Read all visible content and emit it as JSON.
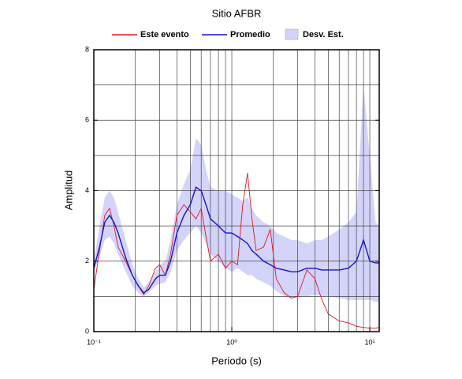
{
  "chart_data": {
    "type": "line",
    "title": "Sitio AFBR",
    "x_label": "Periodo (s)",
    "y_label": "Amplitud",
    "log_x": true,
    "grid": true,
    "legend": "top",
    "xlim": [
      0.1,
      11.7
    ],
    "ylim": [
      0,
      8
    ],
    "xticks": [
      {
        "value": 0.1,
        "label": "10⁻¹"
      },
      {
        "value": 1,
        "label": "10⁰"
      },
      {
        "value": 10,
        "label": "10¹"
      }
    ],
    "xgrid": [
      0.2,
      0.3,
      0.4,
      0.5,
      0.6,
      0.7,
      0.8,
      0.9,
      1,
      2,
      3,
      4,
      5,
      6,
      7,
      8,
      9,
      10
    ],
    "yticks": [
      0,
      2,
      4,
      6,
      8
    ],
    "ygrid": [
      1,
      2,
      3,
      4,
      5,
      6,
      7
    ],
    "x": [
      0.1,
      0.11,
      0.12,
      0.13,
      0.14,
      0.15,
      0.17,
      0.19,
      0.21,
      0.23,
      0.25,
      0.28,
      0.3,
      0.33,
      0.36,
      0.4,
      0.45,
      0.5,
      0.55,
      0.6,
      0.65,
      0.7,
      0.8,
      0.9,
      1.0,
      1.1,
      1.2,
      1.3,
      1.4,
      1.5,
      1.7,
      1.9,
      2.1,
      2.4,
      2.7,
      3,
      3.5,
      4,
      4.5,
      5,
      6,
      7,
      8,
      9,
      10,
      11,
      11.7
    ],
    "series": [
      {
        "name": "Este evento",
        "color": "#e8141e",
        "values": [
          1.2,
          2.3,
          3.3,
          3.5,
          3.0,
          2.4,
          2.0,
          1.6,
          1.3,
          1.05,
          1.3,
          1.8,
          1.9,
          1.6,
          2.2,
          3.3,
          3.6,
          3.4,
          3.2,
          3.5,
          2.7,
          2.0,
          2.2,
          1.8,
          2.0,
          1.9,
          3.6,
          4.5,
          3.2,
          2.3,
          2.4,
          2.9,
          1.5,
          1.1,
          0.95,
          1.0,
          1.75,
          1.5,
          0.9,
          0.5,
          0.3,
          0.25,
          0.15,
          0.12,
          0.1,
          0.1,
          0.12
        ]
      },
      {
        "name": "Promedio",
        "color": "#1414d2",
        "values": [
          1.8,
          2.4,
          3.1,
          3.3,
          3.1,
          2.8,
          2.1,
          1.6,
          1.3,
          1.1,
          1.2,
          1.5,
          1.6,
          1.6,
          2.0,
          2.8,
          3.3,
          3.6,
          4.1,
          4.0,
          3.6,
          3.2,
          3.0,
          2.8,
          2.8,
          2.7,
          2.6,
          2.5,
          2.3,
          2.2,
          2.0,
          1.9,
          1.8,
          1.75,
          1.7,
          1.7,
          1.8,
          1.8,
          1.75,
          1.75,
          1.75,
          1.8,
          2.0,
          2.6,
          2.0,
          1.95,
          1.95
        ]
      },
      {
        "name": "Desv. Est.",
        "color": "#d4d4fa",
        "lower": [
          1.7,
          2.1,
          2.6,
          2.7,
          2.5,
          2.2,
          1.7,
          1.3,
          1.1,
          1.0,
          1.1,
          1.3,
          1.35,
          1.4,
          1.7,
          2.3,
          2.6,
          2.8,
          3.0,
          2.8,
          2.5,
          2.2,
          2.0,
          1.8,
          1.7,
          1.8,
          1.7,
          1.6,
          1.6,
          1.5,
          1.4,
          1.3,
          1.15,
          1.0,
          0.95,
          0.95,
          1.0,
          1.05,
          1.0,
          1.0,
          0.95,
          0.9,
          0.9,
          0.9,
          0.9,
          0.85,
          0.85
        ],
        "upper": [
          2.0,
          3.0,
          3.8,
          4.0,
          3.8,
          3.4,
          2.6,
          1.9,
          1.5,
          1.25,
          1.4,
          1.7,
          1.9,
          2.0,
          2.6,
          3.6,
          4.2,
          4.6,
          5.5,
          5.3,
          4.6,
          4.1,
          4.0,
          4.0,
          3.9,
          3.8,
          3.7,
          3.8,
          3.5,
          3.3,
          3.1,
          3.0,
          2.8,
          2.7,
          2.6,
          2.6,
          2.5,
          2.6,
          2.6,
          2.7,
          2.9,
          3.1,
          3.4,
          7.0,
          5.0,
          3.1,
          3.0
        ]
      }
    ]
  }
}
